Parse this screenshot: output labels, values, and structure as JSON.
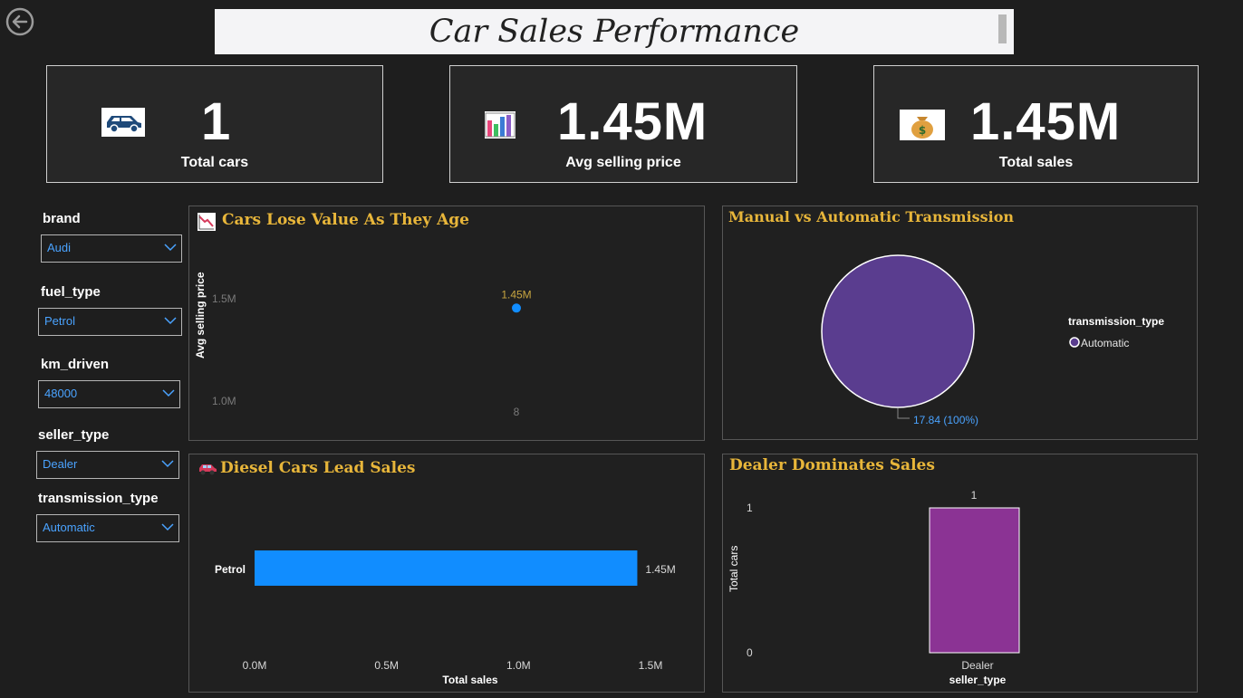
{
  "header": {
    "title": "Car Sales Performance"
  },
  "kpis": [
    {
      "value": "1",
      "label": "Total cars",
      "icon": "car-icon"
    },
    {
      "value": "1.45M",
      "label": "Avg selling price",
      "icon": "bar-chart-icon"
    },
    {
      "value": "1.45M",
      "label": "Total sales",
      "icon": "money-bag-icon"
    }
  ],
  "filters": {
    "brand": {
      "label": "brand",
      "value": "Audi"
    },
    "fuel_type": {
      "label": "fuel_type",
      "value": "Petrol"
    },
    "km_driven": {
      "label": "km_driven",
      "value": "48000"
    },
    "seller_type": {
      "label": "seller_type",
      "value": "Dealer"
    },
    "transmission_type": {
      "label": "transmission_type",
      "value": "Automatic"
    }
  },
  "colors": {
    "accent_gold": "#e8b63a",
    "blue": "#118dff",
    "purple": "#5a3d8f",
    "magenta": "#8b3394"
  },
  "chart_data": [
    {
      "type": "scatter",
      "title": "Cars Lose Value As They Age",
      "ylabel": "Avg selling price",
      "xlabel": "",
      "y_ticks": [
        "1.5M",
        "1.0M"
      ],
      "x_ticks": [
        "8"
      ],
      "ylim": [
        1.0,
        1.5
      ],
      "points": [
        {
          "x": 8,
          "y": 1.45,
          "label": "1.45M"
        }
      ]
    },
    {
      "type": "pie",
      "title": "Manual vs Automatic Transmission",
      "legend_title": "transmission_type",
      "slices": [
        {
          "label": "Automatic",
          "value": 17.84,
          "data_label": "17.84 (100%)"
        }
      ]
    },
    {
      "type": "bar",
      "orientation": "horizontal",
      "title": "Diesel Cars Lead Sales",
      "xlabel": "Total sales",
      "categories": [
        "Petrol"
      ],
      "values": [
        1.45
      ],
      "data_labels": [
        "1.45M"
      ],
      "x_ticks": [
        "0.0M",
        "0.5M",
        "1.0M",
        "1.5M"
      ],
      "xlim": [
        0,
        1.5
      ]
    },
    {
      "type": "bar",
      "title": "Dealer Dominates Sales",
      "xlabel": "seller_type",
      "ylabel": "Total cars",
      "categories": [
        "Dealer"
      ],
      "values": [
        1
      ],
      "data_labels": [
        "1"
      ],
      "y_ticks": [
        "1",
        "0"
      ],
      "ylim": [
        0,
        1
      ]
    }
  ]
}
